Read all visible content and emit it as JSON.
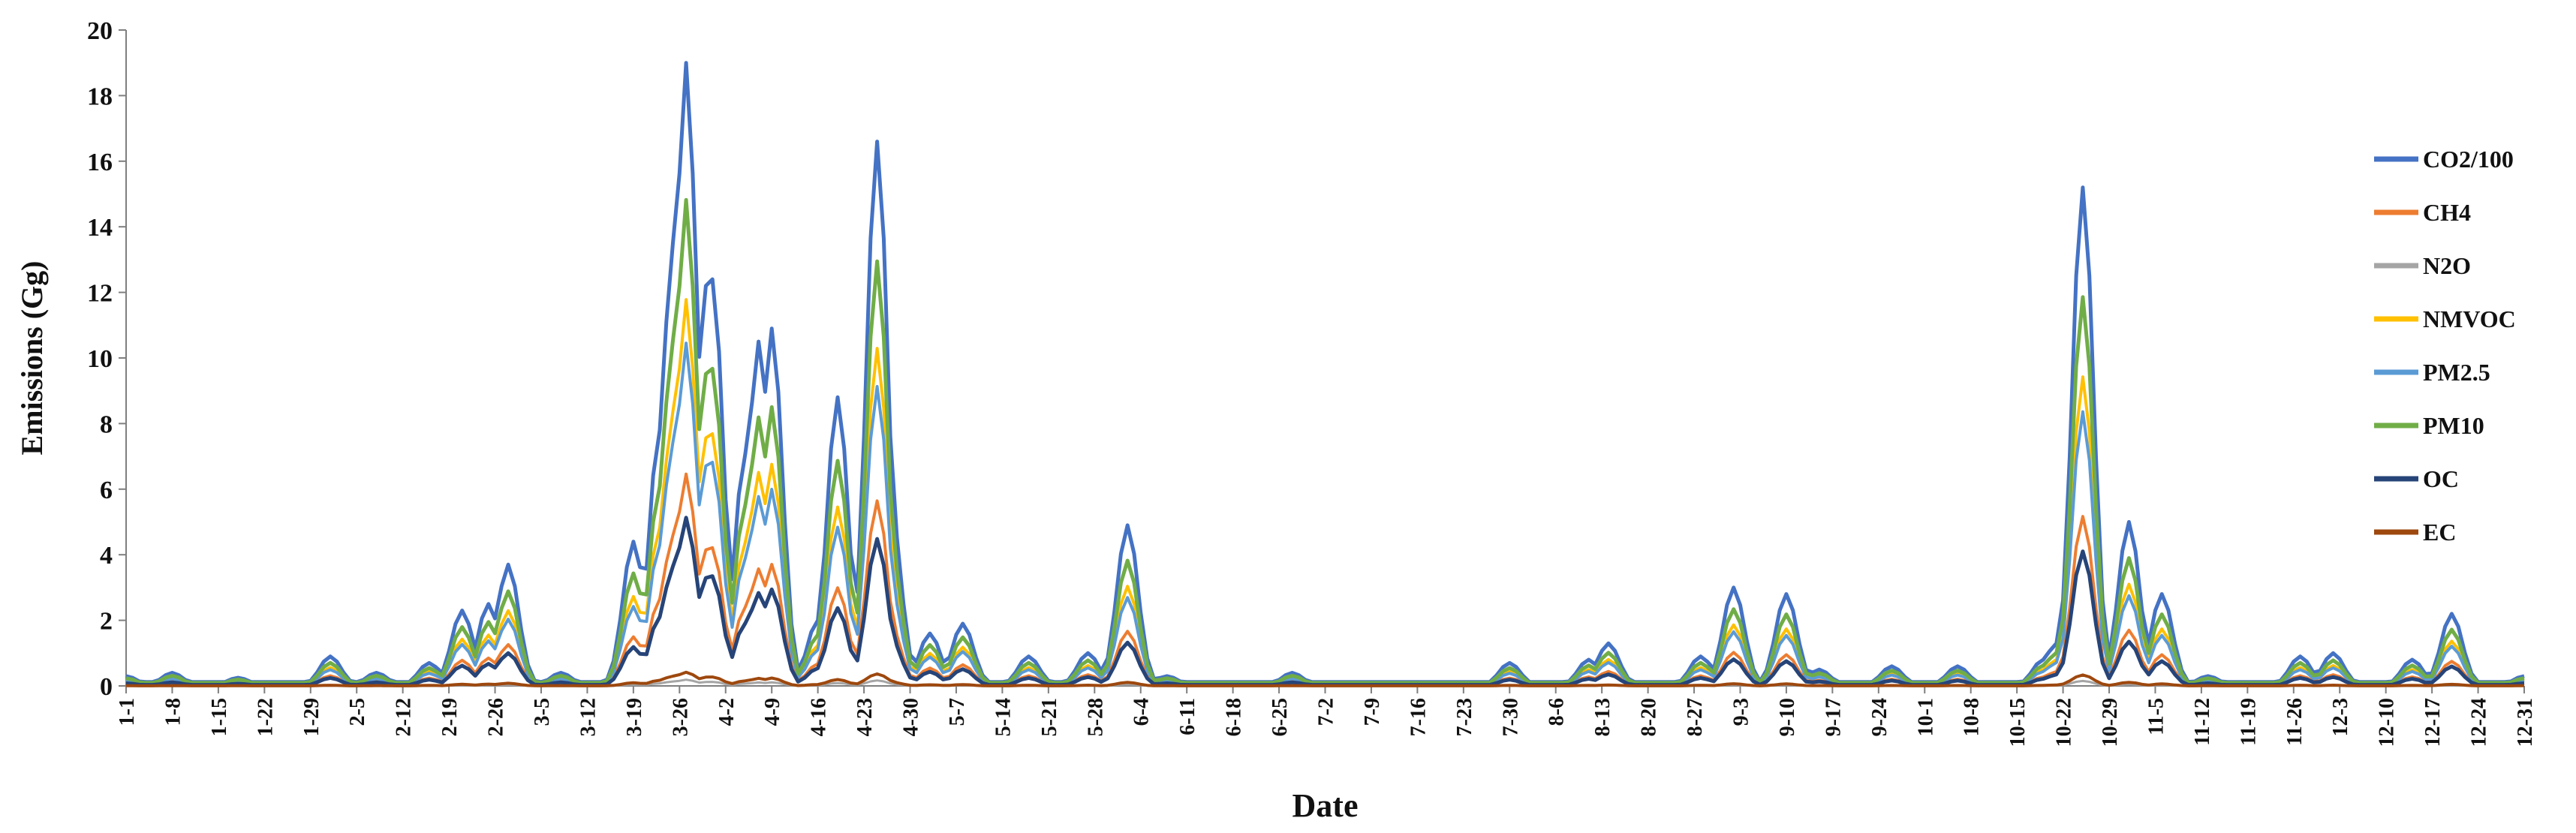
{
  "chart_data": {
    "type": "line",
    "xlabel": "Date",
    "ylabel": "Emissions (Gg)",
    "ylim": [
      0,
      20
    ],
    "yticks": [
      0,
      2,
      4,
      6,
      8,
      10,
      12,
      14,
      16,
      18,
      20
    ],
    "x_tick_labels": [
      "1-1",
      "1-8",
      "1-15",
      "1-22",
      "1-29",
      "2-5",
      "2-12",
      "2-19",
      "2-26",
      "3-5",
      "3-12",
      "3-19",
      "3-26",
      "4-2",
      "4-9",
      "4-16",
      "4-23",
      "4-30",
      "5-7",
      "5-14",
      "5-21",
      "5-28",
      "6-4",
      "6-11",
      "6-18",
      "6-25",
      "7-2",
      "7-9",
      "7-16",
      "7-23",
      "7-30",
      "8-6",
      "8-13",
      "8-20",
      "8-27",
      "9-3",
      "9-10",
      "9-17",
      "9-24",
      "10-1",
      "10-8",
      "10-15",
      "10-22",
      "10-29",
      "11-5",
      "11-12",
      "11-19",
      "11-26",
      "12-3",
      "12-10",
      "12-17",
      "12-24",
      "12-31"
    ],
    "grid": false,
    "legend_position": "right",
    "series": [
      {
        "name": "CO2/100",
        "color": "#4472C4"
      },
      {
        "name": "CH4",
        "color": "#ED7D31"
      },
      {
        "name": "N2O",
        "color": "#A5A5A5"
      },
      {
        "name": "NMVOC",
        "color": "#FFC000"
      },
      {
        "name": "PM2.5",
        "color": "#5B9BD5"
      },
      {
        "name": "PM10",
        "color": "#70AD47"
      },
      {
        "name": "OC",
        "color": "#264478"
      },
      {
        "name": "EC",
        "color": "#9E480E"
      }
    ],
    "peaks": [
      {
        "date": "1-1",
        "value": 0.3
      },
      {
        "date": "1-8",
        "value": 0.4
      },
      {
        "date": "1-18",
        "value": 0.25
      },
      {
        "date": "2-1",
        "value": 0.9
      },
      {
        "date": "2-8",
        "value": 0.4
      },
      {
        "date": "2-16",
        "value": 0.7
      },
      {
        "date": "2-21",
        "value": 2.3
      },
      {
        "date": "2-25",
        "value": 2.5
      },
      {
        "date": "2-28",
        "value": 3.7
      },
      {
        "date": "3-8",
        "value": 0.4
      },
      {
        "date": "3-19",
        "value": 4.4
      },
      {
        "date": "3-23",
        "value": 7.8
      },
      {
        "date": "3-25",
        "value": 13.5
      },
      {
        "date": "3-27",
        "value": 19.0
      },
      {
        "date": "3-30",
        "value": 12.2
      },
      {
        "date": "3-31",
        "value": 12.4
      },
      {
        "date": "4-5",
        "value": 7.1
      },
      {
        "date": "4-7",
        "value": 10.5
      },
      {
        "date": "4-9",
        "value": 10.9
      },
      {
        "date": "4-16",
        "value": 2.0
      },
      {
        "date": "4-19",
        "value": 8.8
      },
      {
        "date": "4-25",
        "value": 16.6
      },
      {
        "date": "4-27",
        "value": 5.5
      },
      {
        "date": "5-3",
        "value": 1.6
      },
      {
        "date": "5-8",
        "value": 1.9
      },
      {
        "date": "5-18",
        "value": 0.9
      },
      {
        "date": "5-27",
        "value": 1.0
      },
      {
        "date": "6-2",
        "value": 4.9
      },
      {
        "date": "6-8",
        "value": 0.3
      },
      {
        "date": "6-27",
        "value": 0.4
      },
      {
        "date": "7-30",
        "value": 0.7
      },
      {
        "date": "8-11",
        "value": 0.8
      },
      {
        "date": "8-14",
        "value": 1.3
      },
      {
        "date": "8-28",
        "value": 0.9
      },
      {
        "date": "9-2",
        "value": 3.0
      },
      {
        "date": "9-10",
        "value": 2.8
      },
      {
        "date": "9-15",
        "value": 0.5
      },
      {
        "date": "9-26",
        "value": 0.6
      },
      {
        "date": "10-6",
        "value": 0.6
      },
      {
        "date": "10-19",
        "value": 0.8
      },
      {
        "date": "10-21",
        "value": 1.3
      },
      {
        "date": "10-25",
        "value": 15.2
      },
      {
        "date": "11-1",
        "value": 5.0
      },
      {
        "date": "11-6",
        "value": 2.8
      },
      {
        "date": "11-13",
        "value": 0.3
      },
      {
        "date": "11-27",
        "value": 0.9
      },
      {
        "date": "12-2",
        "value": 1.0
      },
      {
        "date": "12-14",
        "value": 0.8
      },
      {
        "date": "12-20",
        "value": 2.2
      },
      {
        "date": "12-31",
        "value": 0.3
      }
    ],
    "ratios": {
      "CO2/100": 1.0,
      "CH4": 0.34,
      "N2O": 0.01,
      "NMVOC": 0.62,
      "PM2.5": 0.55,
      "PM10": 0.78,
      "OC": 0.27,
      "EC": 0.022
    }
  }
}
